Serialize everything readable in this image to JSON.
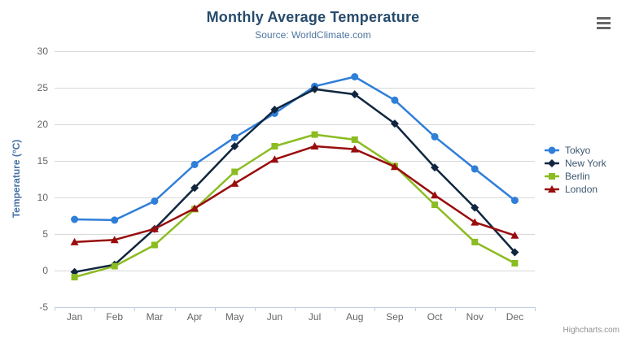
{
  "credits": "Highcharts.com",
  "menu": {
    "icon": "hamburger-menu-icon"
  },
  "palette": {
    "title_color": "#274b6d",
    "subtitle_color": "#4d759e",
    "yaxis_title_color": "#4572a7",
    "axis_label_color": "#666666",
    "gridline_color": "#d8d8d8",
    "axis_line_color": "#c0d0e0",
    "legend_text_color": "#3e576f"
  },
  "chart_data": {
    "type": "line",
    "title": "Monthly Average Temperature",
    "subtitle": "Source: WorldClimate.com",
    "xlabel": "",
    "ylabel": "Temperature (°C)",
    "categories": [
      "Jan",
      "Feb",
      "Mar",
      "Apr",
      "May",
      "Jun",
      "Jul",
      "Aug",
      "Sep",
      "Oct",
      "Nov",
      "Dec"
    ],
    "yticks": [
      -5,
      0,
      5,
      10,
      15,
      20,
      25,
      30
    ],
    "ylim": [
      -5,
      30
    ],
    "grid": true,
    "legend_position": "right",
    "series": [
      {
        "name": "Tokyo",
        "color": "#2f7ed8",
        "marker": "circle",
        "values": [
          7.0,
          6.9,
          9.5,
          14.5,
          18.2,
          21.5,
          25.2,
          26.5,
          23.3,
          18.3,
          13.9,
          9.6
        ]
      },
      {
        "name": "New York",
        "color": "#10263f",
        "marker": "diamond",
        "values": [
          -0.2,
          0.8,
          5.7,
          11.3,
          17.0,
          22.0,
          24.8,
          24.1,
          20.1,
          14.1,
          8.6,
          2.5
        ]
      },
      {
        "name": "Berlin",
        "color": "#8bbc21",
        "marker": "square",
        "values": [
          -0.9,
          0.6,
          3.5,
          8.4,
          13.5,
          17.0,
          18.6,
          17.9,
          14.3,
          9.0,
          3.9,
          1.0
        ]
      },
      {
        "name": "London",
        "color": "#990d0d",
        "marker": "triangle",
        "values": [
          3.9,
          4.2,
          5.7,
          8.5,
          11.9,
          15.2,
          17.0,
          16.6,
          14.2,
          10.3,
          6.6,
          4.8
        ]
      }
    ]
  }
}
